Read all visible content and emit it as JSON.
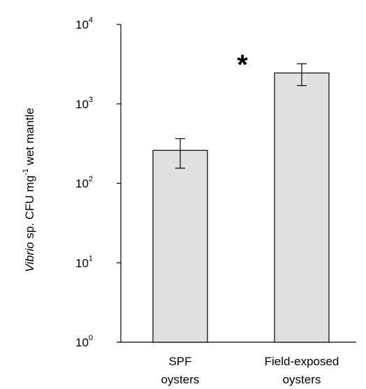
{
  "chart_data": {
    "type": "bar",
    "categories": [
      [
        "SPF",
        "oysters"
      ],
      [
        "Field-exposed",
        "oysters"
      ]
    ],
    "values": [
      260,
      2450
    ],
    "errors": [
      {
        "lower": 155,
        "upper": 365
      },
      {
        "lower": 1700,
        "upper": 3200
      }
    ],
    "ylabel": {
      "italic_part": "Vibrio",
      "part2": " sp. CFU mg",
      "superscript": "-1",
      "part3": " wet mantle"
    },
    "yscale": "log",
    "ylim": [
      1,
      10000
    ],
    "yticks": [
      {
        "value": 1,
        "base": "10",
        "exp": "0"
      },
      {
        "value": 10,
        "base": "10",
        "exp": "1"
      },
      {
        "value": 100,
        "base": "10",
        "exp": "2"
      },
      {
        "value": 1000,
        "base": "10",
        "exp": "3"
      },
      {
        "value": 10000,
        "base": "10",
        "exp": "4"
      }
    ],
    "annotation": "*",
    "bar_color": "#e0e0e0",
    "bar_edge_color": "#000000",
    "grid": false
  }
}
